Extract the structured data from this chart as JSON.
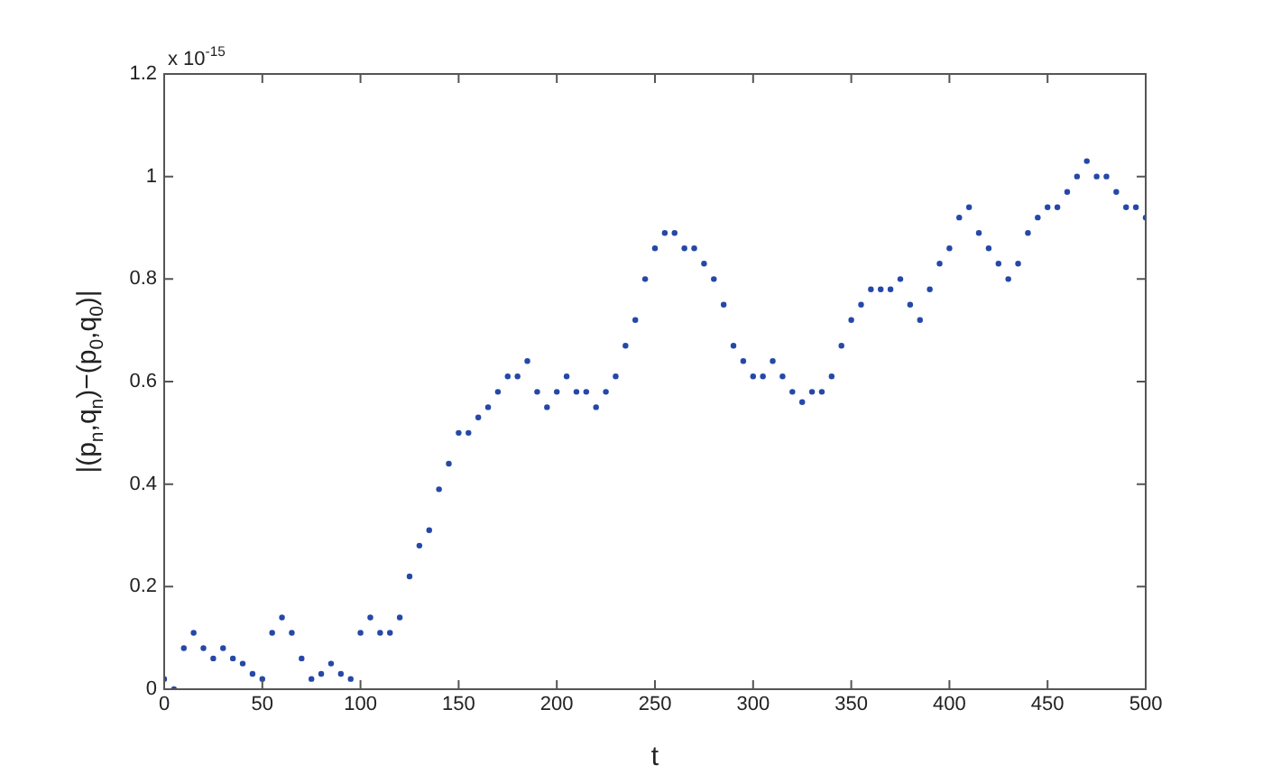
{
  "chart_data": {
    "type": "scatter",
    "xlabel": "t",
    "ylabel": "|(p$_{n}$,q$_{n}$)−(p$_{0}$,q$_{0}$)|",
    "annotations": [
      "x 10$^{-15}$"
    ],
    "xlim": [
      0,
      500
    ],
    "xticks": [
      0,
      50,
      100,
      150,
      200,
      250,
      300,
      350,
      400,
      450,
      500
    ],
    "ylim": [
      0,
      1.2
    ],
    "yticks": [
      0,
      0.2,
      0.4,
      0.6,
      0.8,
      1,
      1.2
    ],
    "grid": false,
    "legend": false,
    "marker": "circle",
    "x": [
      0,
      5,
      10,
      15,
      20,
      25,
      30,
      35,
      40,
      45,
      50,
      55,
      60,
      65,
      70,
      75,
      80,
      85,
      90,
      95,
      100,
      105,
      110,
      115,
      120,
      125,
      130,
      135,
      140,
      145,
      150,
      155,
      160,
      165,
      170,
      175,
      180,
      185,
      190,
      195,
      200,
      205,
      210,
      215,
      220,
      225,
      230,
      235,
      240,
      245,
      250,
      255,
      260,
      265,
      270,
      275,
      280,
      285,
      290,
      295,
      300,
      305,
      310,
      315,
      320,
      325,
      330,
      335,
      340,
      345,
      350,
      355,
      360,
      365,
      370,
      375,
      380,
      385,
      390,
      395,
      400,
      405,
      410,
      415,
      420,
      425,
      430,
      435,
      440,
      445,
      450,
      455,
      460,
      465,
      470,
      475,
      480,
      485,
      490,
      495,
      500
    ],
    "series": [
      {
        "color": "#2548a8",
        "values": [
          0.02,
          0.0,
          0.08,
          0.11,
          0.08,
          0.06,
          0.08,
          0.06,
          0.05,
          0.03,
          0.02,
          0.11,
          0.14,
          0.11,
          0.06,
          0.02,
          0.03,
          0.05,
          0.03,
          0.02,
          0.11,
          0.14,
          0.11,
          0.11,
          0.14,
          0.22,
          0.28,
          0.31,
          0.39,
          0.44,
          0.5,
          0.5,
          0.53,
          0.55,
          0.58,
          0.61,
          0.61,
          0.64,
          0.58,
          0.55,
          0.58,
          0.61,
          0.58,
          0.58,
          0.55,
          0.58,
          0.61,
          0.67,
          0.72,
          0.8,
          0.86,
          0.89,
          0.89,
          0.86,
          0.86,
          0.83,
          0.8,
          0.75,
          0.67,
          0.64,
          0.61,
          0.61,
          0.64,
          0.61,
          0.58,
          0.56,
          0.58,
          0.58,
          0.61,
          0.67,
          0.72,
          0.75,
          0.78,
          0.78,
          0.78,
          0.8,
          0.75,
          0.72,
          0.78,
          0.83,
          0.86,
          0.92,
          0.94,
          0.89,
          0.86,
          0.83,
          0.8,
          0.83,
          0.89,
          0.92,
          0.94,
          0.94,
          0.97,
          1.0,
          1.03,
          1.0,
          1.0,
          0.97,
          0.94,
          0.94,
          0.92
        ]
      }
    ]
  }
}
